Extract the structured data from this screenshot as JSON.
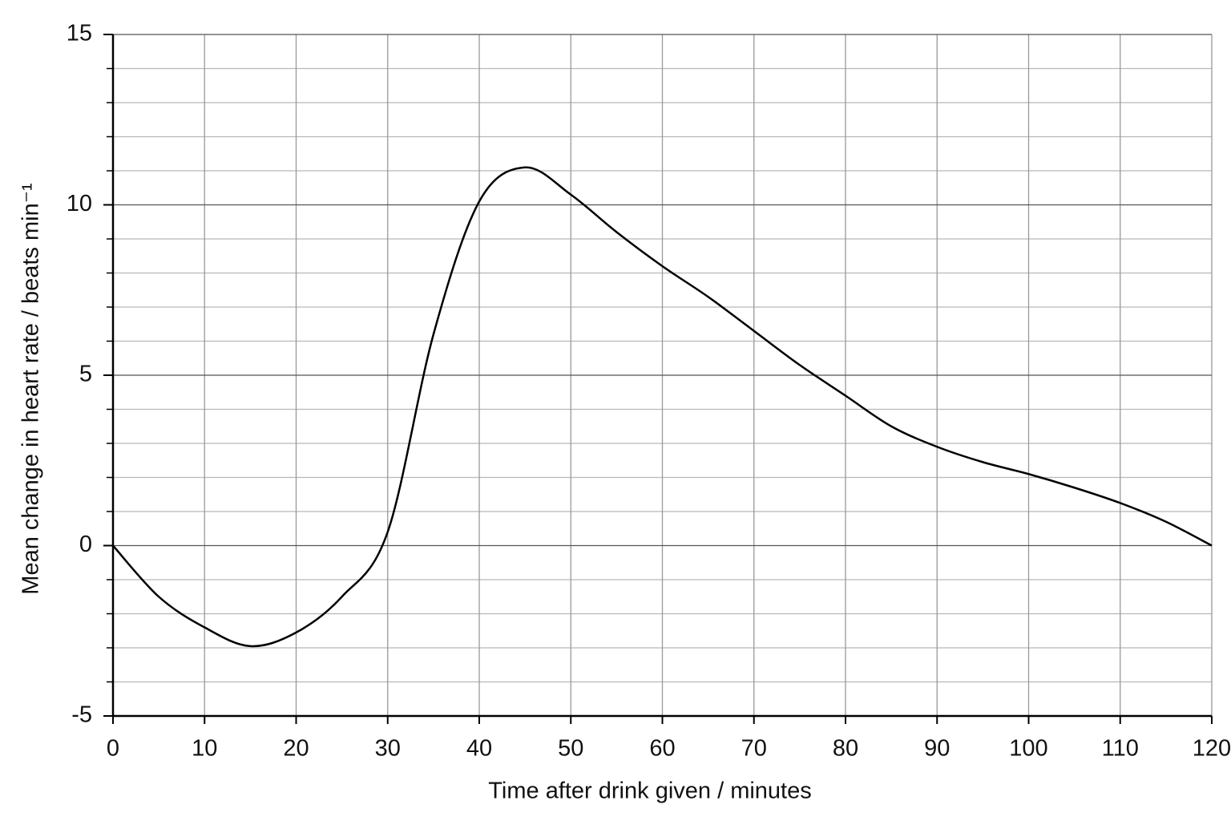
{
  "chart_data": {
    "type": "line",
    "x_label": "Time after drink given / minutes",
    "y_label": "Mean change in heart rate / beats min⁻¹",
    "x": [
      0,
      5,
      10,
      15,
      20,
      25,
      30,
      35,
      40,
      45,
      50,
      55,
      60,
      65,
      70,
      75,
      80,
      85,
      90,
      95,
      100,
      105,
      110,
      115,
      120
    ],
    "series": [
      {
        "color": "#000000",
        "values": [
          0,
          -1.5,
          -2.4,
          -2.95,
          -2.55,
          -1.5,
          0.4,
          6.2,
          10.1,
          11.1,
          10.3,
          9.2,
          8.2,
          7.3,
          6.3,
          5.3,
          4.4,
          3.5,
          2.9,
          2.45,
          2.1,
          1.7,
          1.25,
          0.7,
          0
        ]
      }
    ],
    "xlim": [
      0,
      120
    ],
    "xticks": [
      0,
      10,
      20,
      30,
      40,
      50,
      60,
      70,
      80,
      90,
      100,
      110,
      120
    ],
    "ylim": [
      -5,
      15
    ],
    "yticks": [
      -5,
      0,
      5,
      10,
      15
    ],
    "grid": true
  }
}
